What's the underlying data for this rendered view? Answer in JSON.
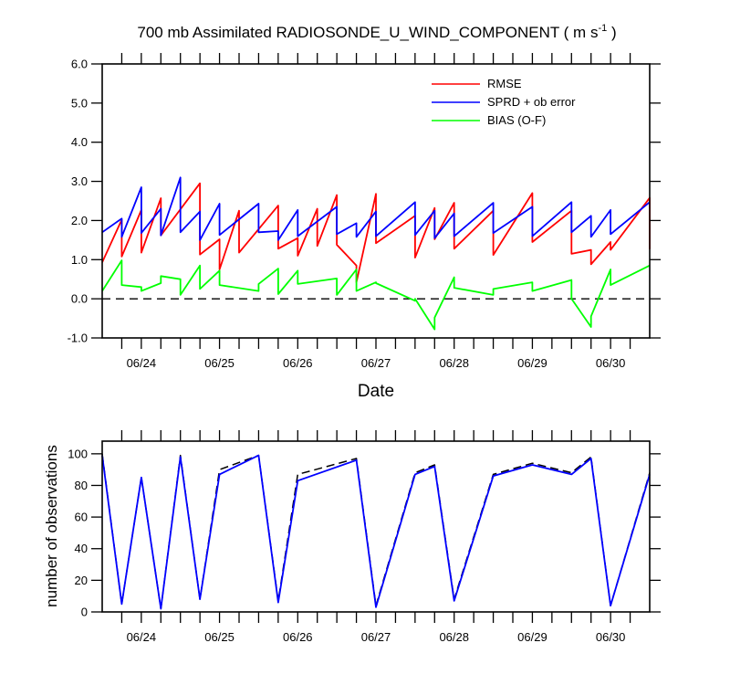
{
  "chart_data": [
    {
      "type": "line",
      "title": "700 mb Assimilated RADIOSONDE_U_WIND_COMPONENT ( m s",
      "title_superscript": "-1",
      "title_suffix": " )",
      "xlabel": "Date",
      "ylabel": "",
      "xlim": [
        0,
        7.0
      ],
      "ylim": [
        -1.0,
        6.0
      ],
      "yticks": [
        -1.0,
        0.0,
        1.0,
        2.0,
        3.0,
        4.0,
        5.0,
        6.0
      ],
      "ytick_labels": [
        "-1.0",
        "0.0",
        "1.0",
        "2.0",
        "3.0",
        "4.0",
        "5.0",
        "6.0"
      ],
      "xtick_positions": [
        0.5,
        1.5,
        2.5,
        3.5,
        4.5,
        5.5,
        6.5
      ],
      "xtick_labels": [
        "06/24",
        "06/25",
        "06/26",
        "06/27",
        "06/28",
        "06/29",
        "06/30"
      ],
      "reference_line": 0.0,
      "legend_position": "top-right",
      "series": [
        {
          "name": "RMSE",
          "color": "#ff0000",
          "x": [
            0,
            0.25,
            0.25,
            0.5,
            0.5,
            0.75,
            0.75,
            1.25,
            1.25,
            1.5,
            1.5,
            1.75,
            1.75,
            2.25,
            2.25,
            2.5,
            2.5,
            2.75,
            2.75,
            3.0,
            3.0,
            3.25,
            3.25,
            3.5,
            3.5,
            4.0,
            4.0,
            4.25,
            4.25,
            4.5,
            4.5,
            5.0,
            5.0,
            5.5,
            5.5,
            6.0,
            6.0,
            6.25,
            6.25,
            6.5,
            6.5,
            7.0,
            7.0
          ],
          "y": [
            0.93,
            2.02,
            1.08,
            2.27,
            1.18,
            2.57,
            1.62,
            2.95,
            1.13,
            1.52,
            0.75,
            2.25,
            1.18,
            2.38,
            1.28,
            1.55,
            1.1,
            2.3,
            1.35,
            2.65,
            1.38,
            0.85,
            0.42,
            2.68,
            1.42,
            2.12,
            1.05,
            2.32,
            1.52,
            2.45,
            1.28,
            2.25,
            1.12,
            2.7,
            1.45,
            2.25,
            1.15,
            1.25,
            0.88,
            1.45,
            1.25,
            2.58,
            1.27
          ]
        },
        {
          "name": "SPRD + ob error",
          "color": "#0000ff",
          "x": [
            0,
            0.25,
            0.25,
            0.5,
            0.5,
            0.75,
            0.75,
            1.0,
            1.0,
            1.25,
            1.25,
            1.5,
            1.5,
            2.0,
            2.0,
            2.25,
            2.25,
            2.5,
            2.5,
            3.0,
            3.0,
            3.25,
            3.25,
            3.5,
            3.5,
            4.0,
            4.0,
            4.25,
            4.25,
            4.5,
            4.5,
            5.0,
            5.0,
            5.5,
            5.5,
            6.0,
            6.0,
            6.25,
            6.25,
            6.5,
            6.5,
            7.0
          ],
          "y": [
            1.7,
            2.05,
            1.58,
            2.85,
            1.68,
            2.3,
            1.62,
            3.1,
            1.7,
            2.23,
            1.5,
            2.43,
            1.63,
            2.43,
            1.7,
            1.73,
            1.5,
            2.27,
            1.6,
            2.35,
            1.65,
            1.93,
            1.58,
            2.23,
            1.6,
            2.47,
            1.63,
            2.25,
            1.55,
            2.18,
            1.6,
            2.45,
            1.68,
            2.35,
            1.6,
            2.47,
            1.7,
            2.12,
            1.58,
            2.27,
            1.65,
            2.47
          ]
        },
        {
          "name": "BIAS (O-F)",
          "color": "#00ff00",
          "x": [
            0,
            0.25,
            0.25,
            0.5,
            0.5,
            0.75,
            0.75,
            1.0,
            1.0,
            1.25,
            1.25,
            1.5,
            1.5,
            2.0,
            2.0,
            2.25,
            2.25,
            2.5,
            2.5,
            3.0,
            3.0,
            3.25,
            3.25,
            3.5,
            3.5,
            4.0,
            4.0,
            4.25,
            4.25,
            4.5,
            4.5,
            5.0,
            5.0,
            5.5,
            5.5,
            6.0,
            6.0,
            6.25,
            6.25,
            6.5,
            6.5,
            7.0
          ],
          "y": [
            0.2,
            0.98,
            0.35,
            0.3,
            0.2,
            0.4,
            0.58,
            0.5,
            0.1,
            0.85,
            0.25,
            0.72,
            0.35,
            0.2,
            0.38,
            0.77,
            0.12,
            0.72,
            0.38,
            0.52,
            0.1,
            0.75,
            0.2,
            0.42,
            0.4,
            -0.05,
            0.0,
            -0.78,
            -0.48,
            0.55,
            0.28,
            0.1,
            0.25,
            0.42,
            0.2,
            0.48,
            0.0,
            -0.72,
            -0.45,
            0.75,
            0.35,
            0.85
          ]
        }
      ]
    },
    {
      "type": "line",
      "title": "",
      "xlabel": "",
      "ylabel": "number of observations",
      "xlim": [
        0,
        7.0
      ],
      "ylim": [
        0,
        108
      ],
      "yticks": [
        0,
        20,
        40,
        60,
        80,
        100
      ],
      "ytick_labels": [
        "0",
        "20",
        "40",
        "60",
        "80",
        "100"
      ],
      "xtick_positions": [
        0.5,
        1.5,
        2.5,
        3.5,
        4.5,
        5.5,
        6.5
      ],
      "xtick_labels": [
        "06/24",
        "06/25",
        "06/26",
        "06/27",
        "06/28",
        "06/29",
        "06/30"
      ],
      "series": [
        {
          "style": "dashed",
          "color": "#000000",
          "x": [
            0,
            0.25,
            0.5,
            0.75,
            1.0,
            1.25,
            1.5,
            2.0,
            2.25,
            2.5,
            3.25,
            3.5,
            4.0,
            4.25,
            4.5,
            5.0,
            5.5,
            6.0,
            6.25,
            6.5,
            7.0
          ],
          "y": [
            100,
            5,
            85,
            2,
            99,
            8,
            90,
            99,
            7,
            87,
            97,
            4,
            88,
            93,
            8,
            87,
            94,
            88,
            98,
            4,
            88
          ]
        },
        {
          "style": "solid",
          "color": "#0000ff",
          "x": [
            0,
            0.25,
            0.5,
            0.75,
            1.0,
            1.25,
            1.5,
            2.0,
            2.25,
            2.5,
            3.25,
            3.5,
            4.0,
            4.25,
            4.5,
            5.0,
            5.5,
            6.0,
            6.25,
            6.5,
            7.0
          ],
          "y": [
            99,
            5,
            85,
            2,
            98,
            8,
            87,
            99,
            6,
            83,
            96,
            3,
            87,
            92,
            7,
            86,
            93,
            87,
            97,
            4,
            87
          ]
        }
      ]
    }
  ]
}
